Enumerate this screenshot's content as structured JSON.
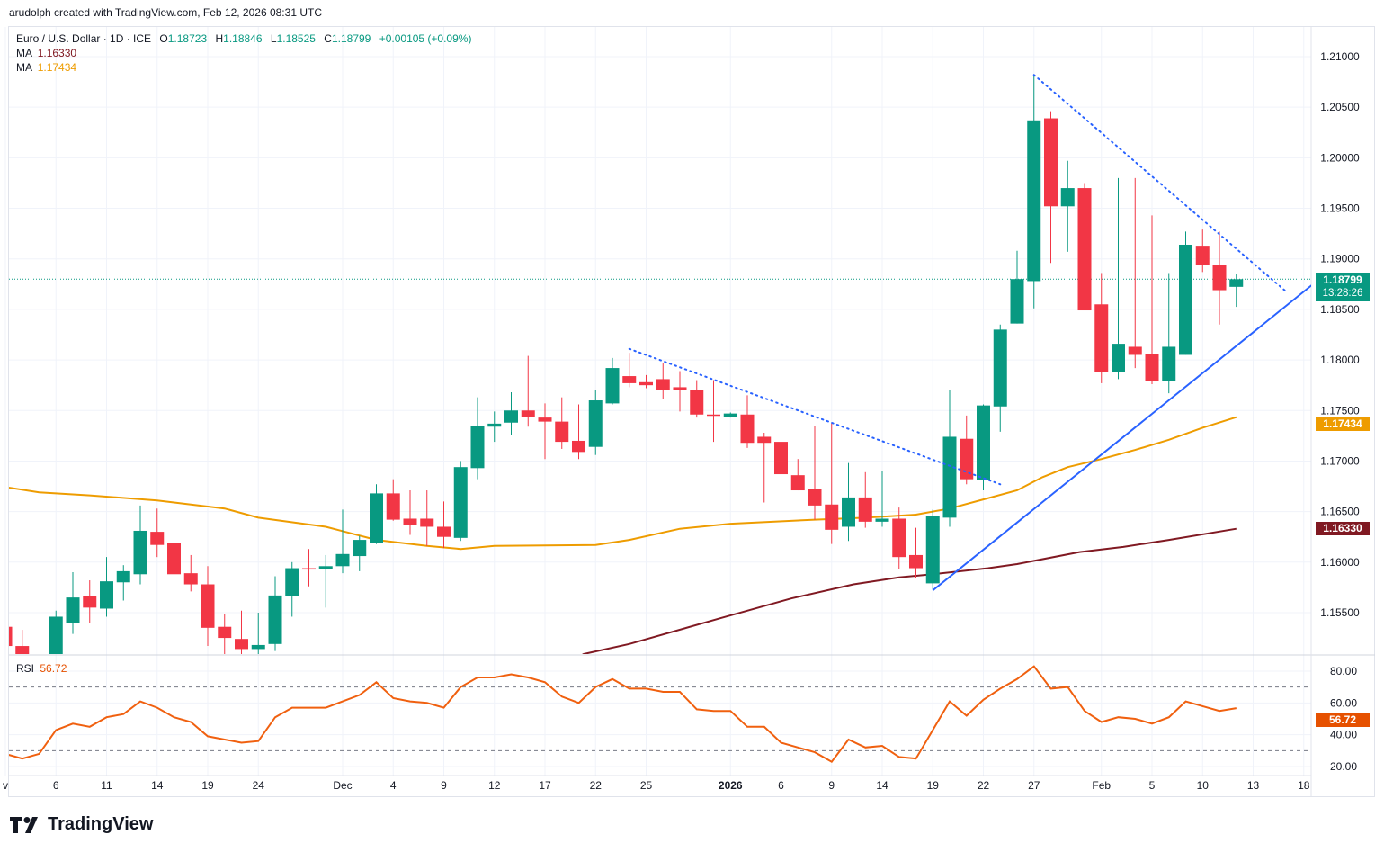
{
  "credit": "arudolph created with TradingView.com, Feb 12, 2026 08:31 UTC",
  "legend": {
    "symbol": "Euro / U.S. Dollar · 1D · ICE",
    "o_label": "O",
    "o": "1.18723",
    "h_label": "H",
    "h": "1.18846",
    "l_label": "L",
    "l": "1.18525",
    "c_label": "C",
    "c": "1.18799",
    "change": "+0.00105 (+0.09%)",
    "ma1_label": "MA",
    "ma1": "1.16330",
    "ma2_label": "MA",
    "ma2": "1.17434",
    "rsi_label": "RSI",
    "rsi": "56.72"
  },
  "tags": {
    "price": "1.18799",
    "countdown": "13:28:26",
    "ma2": "1.17434",
    "ma1": "1.16330",
    "rsi": "56.72"
  },
  "brand": "TradingView",
  "colors": {
    "up": "#089981",
    "down": "#f23645",
    "ma1": "#801922",
    "ma2": "#ee9c00",
    "trend": "#2962ff",
    "rsi": "#f0600f"
  },
  "chart_data": {
    "type": "candlestick",
    "title": "Euro / U.S. Dollar · 1D · ICE",
    "ylim": [
      1.1509,
      1.2125
    ],
    "price_ticks": [
      "1.21000",
      "1.20500",
      "1.20000",
      "1.19500",
      "1.19000",
      "1.18500",
      "1.18000",
      "1.17500",
      "1.17000",
      "1.16500",
      "1.16000",
      "1.15500"
    ],
    "x_ticks": [
      {
        "label": "v",
        "bar": 0
      },
      {
        "label": "6",
        "bar": 3
      },
      {
        "label": "11",
        "bar": 6
      },
      {
        "label": "14",
        "bar": 9
      },
      {
        "label": "19",
        "bar": 12
      },
      {
        "label": "24",
        "bar": 15
      },
      {
        "label": "Dec",
        "bar": 20
      },
      {
        "label": "4",
        "bar": 23
      },
      {
        "label": "9",
        "bar": 26
      },
      {
        "label": "12",
        "bar": 29
      },
      {
        "label": "17",
        "bar": 32
      },
      {
        "label": "22",
        "bar": 35
      },
      {
        "label": "25",
        "bar": 38
      },
      {
        "label": "2026",
        "bar": 43,
        "bold": true
      },
      {
        "label": "6",
        "bar": 46
      },
      {
        "label": "9",
        "bar": 49
      },
      {
        "label": "14",
        "bar": 52
      },
      {
        "label": "19",
        "bar": 55
      },
      {
        "label": "22",
        "bar": 58
      },
      {
        "label": "27",
        "bar": 61
      },
      {
        "label": "Feb",
        "bar": 65
      },
      {
        "label": "5",
        "bar": 68
      },
      {
        "label": "10",
        "bar": 71
      },
      {
        "label": "13",
        "bar": 74
      },
      {
        "label": "18",
        "bar": 77
      }
    ],
    "ohlc": [
      [
        1.1536,
        1.1538,
        1.1515,
        1.1517
      ],
      [
        1.1517,
        1.1533,
        1.15,
        1.1503
      ],
      [
        1.1503,
        1.1508,
        1.149,
        1.15
      ],
      [
        1.15,
        1.1552,
        1.1498,
        1.1546
      ],
      [
        1.154,
        1.159,
        1.1529,
        1.1565
      ],
      [
        1.1566,
        1.1582,
        1.154,
        1.1555
      ],
      [
        1.1554,
        1.1605,
        1.1546,
        1.1581
      ],
      [
        1.158,
        1.1597,
        1.1562,
        1.1591
      ],
      [
        1.1588,
        1.1656,
        1.1578,
        1.1631
      ],
      [
        1.163,
        1.1653,
        1.1605,
        1.1617
      ],
      [
        1.1619,
        1.1624,
        1.1581,
        1.1588
      ],
      [
        1.1589,
        1.1607,
        1.1571,
        1.1578
      ],
      [
        1.1578,
        1.1596,
        1.1517,
        1.1535
      ],
      [
        1.1536,
        1.1549,
        1.1509,
        1.1525
      ],
      [
        1.1524,
        1.1552,
        1.1505,
        1.1514
      ],
      [
        1.1514,
        1.155,
        1.1505,
        1.1518
      ],
      [
        1.1519,
        1.1586,
        1.1512,
        1.1567
      ],
      [
        1.1566,
        1.16,
        1.1546,
        1.1594
      ],
      [
        1.1594,
        1.1613,
        1.1576,
        1.1593
      ],
      [
        1.1593,
        1.1607,
        1.1555,
        1.1596
      ],
      [
        1.1596,
        1.1652,
        1.1589,
        1.1608
      ],
      [
        1.1606,
        1.1626,
        1.1591,
        1.1622
      ],
      [
        1.1619,
        1.1677,
        1.1618,
        1.1668
      ],
      [
        1.1668,
        1.1682,
        1.1641,
        1.1642
      ],
      [
        1.1643,
        1.1671,
        1.1627,
        1.1637
      ],
      [
        1.1643,
        1.1671,
        1.1616,
        1.1635
      ],
      [
        1.1635,
        1.166,
        1.1614,
        1.1625
      ],
      [
        1.1624,
        1.17,
        1.1621,
        1.1694
      ],
      [
        1.1693,
        1.1763,
        1.1682,
        1.1735
      ],
      [
        1.1734,
        1.1749,
        1.1719,
        1.1737
      ],
      [
        1.1738,
        1.1768,
        1.1726,
        1.175
      ],
      [
        1.175,
        1.1804,
        1.1734,
        1.1744
      ],
      [
        1.1743,
        1.1757,
        1.1702,
        1.1739
      ],
      [
        1.1739,
        1.1763,
        1.1712,
        1.1719
      ],
      [
        1.172,
        1.1756,
        1.1702,
        1.1709
      ],
      [
        1.1714,
        1.177,
        1.1706,
        1.176
      ],
      [
        1.1757,
        1.1802,
        1.1756,
        1.1792
      ],
      [
        1.1784,
        1.1807,
        1.1773,
        1.1777
      ],
      [
        1.1778,
        1.1785,
        1.1772,
        1.1775
      ],
      [
        1.1781,
        1.1797,
        1.1761,
        1.177
      ],
      [
        1.1773,
        1.1789,
        1.1749,
        1.177
      ],
      [
        1.177,
        1.178,
        1.1743,
        1.1746
      ],
      [
        1.1746,
        1.178,
        1.1719,
        1.1745
      ],
      [
        1.1744,
        1.1748,
        1.1743,
        1.1747
      ],
      [
        1.1746,
        1.1765,
        1.1713,
        1.1718
      ],
      [
        1.1724,
        1.1728,
        1.1659,
        1.1718
      ],
      [
        1.1719,
        1.1756,
        1.1684,
        1.1687
      ],
      [
        1.1686,
        1.1702,
        1.1671,
        1.1671
      ],
      [
        1.1672,
        1.1735,
        1.1642,
        1.1656
      ],
      [
        1.1657,
        1.1738,
        1.1618,
        1.1632
      ],
      [
        1.1635,
        1.1698,
        1.1621,
        1.1664
      ],
      [
        1.1664,
        1.1689,
        1.1634,
        1.164
      ],
      [
        1.164,
        1.169,
        1.1635,
        1.1643
      ],
      [
        1.1643,
        1.1654,
        1.1593,
        1.1605
      ],
      [
        1.1607,
        1.1634,
        1.1584,
        1.1594
      ],
      [
        1.1579,
        1.1652,
        1.1573,
        1.1646
      ],
      [
        1.1644,
        1.177,
        1.1635,
        1.1724
      ],
      [
        1.1722,
        1.1745,
        1.1677,
        1.1682
      ],
      [
        1.1681,
        1.1756,
        1.1671,
        1.1755
      ],
      [
        1.1754,
        1.1835,
        1.1729,
        1.183
      ],
      [
        1.1836,
        1.1908,
        1.1836,
        1.188
      ],
      [
        1.1878,
        1.2082,
        1.1851,
        1.2037
      ],
      [
        1.2039,
        1.2046,
        1.1896,
        1.1952
      ],
      [
        1.1952,
        1.1997,
        1.1907,
        1.197
      ],
      [
        1.197,
        1.1975,
        1.1849,
        1.1849
      ],
      [
        1.1855,
        1.1886,
        1.1777,
        1.1788
      ],
      [
        1.1788,
        1.198,
        1.1781,
        1.1816
      ],
      [
        1.1813,
        1.198,
        1.1792,
        1.1805
      ],
      [
        1.1806,
        1.1943,
        1.1776,
        1.1779
      ],
      [
        1.1779,
        1.1886,
        1.1767,
        1.1813
      ],
      [
        1.1805,
        1.1927,
        1.1805,
        1.1914
      ],
      [
        1.1913,
        1.1929,
        1.1887,
        1.1894
      ],
      [
        1.1894,
        1.1927,
        1.1835,
        1.1869
      ],
      [
        1.18723,
        1.18846,
        1.18525,
        1.18799
      ]
    ],
    "last_price": 1.18799,
    "ma_series": [
      {
        "name": "MA",
        "last": 1.1633,
        "color": "#801922",
        "points": [
          [
            30,
            1.147
          ],
          [
            34.3,
            1.1509
          ],
          [
            37,
            1.1519
          ],
          [
            42.3,
            1.1544
          ],
          [
            46.6,
            1.1564
          ],
          [
            50.3,
            1.1578
          ],
          [
            53,
            1.1585
          ],
          [
            55,
            1.1588
          ],
          [
            58.3,
            1.1594
          ],
          [
            60,
            1.1598
          ],
          [
            63.7,
            1.161
          ],
          [
            66.3,
            1.1615
          ],
          [
            69,
            1.1622
          ],
          [
            73,
            1.1633
          ]
        ]
      },
      {
        "name": "MA",
        "last": 1.17434,
        "color": "#ee9c00",
        "points": [
          [
            -0.3,
            1.1675
          ],
          [
            2,
            1.1669
          ],
          [
            5,
            1.1666
          ],
          [
            9,
            1.1661
          ],
          [
            13,
            1.1653
          ],
          [
            15,
            1.1644
          ],
          [
            19,
            1.1635
          ],
          [
            22,
            1.1622
          ],
          [
            25,
            1.1616
          ],
          [
            27,
            1.1613
          ],
          [
            29,
            1.1616
          ],
          [
            35,
            1.1617
          ],
          [
            37,
            1.1622
          ],
          [
            40,
            1.1633
          ],
          [
            43,
            1.1638
          ],
          [
            48,
            1.1642
          ],
          [
            51,
            1.1644
          ],
          [
            54,
            1.1647
          ],
          [
            56,
            1.1653
          ],
          [
            58,
            1.1662
          ],
          [
            60,
            1.1671
          ],
          [
            61.5,
            1.1684
          ],
          [
            63,
            1.1694
          ],
          [
            65,
            1.1702
          ],
          [
            67,
            1.1711
          ],
          [
            69,
            1.1721
          ],
          [
            71,
            1.1733
          ],
          [
            73,
            1.17434
          ]
        ]
      }
    ],
    "trendlines": [
      {
        "style": "dotted",
        "from": [
          37,
          1.1811
        ],
        "to": [
          59,
          1.1677
        ]
      },
      {
        "style": "dotted",
        "from": [
          61,
          1.2082
        ],
        "to": [
          76,
          1.1867
        ]
      },
      {
        "style": "solid",
        "from": [
          55,
          1.1572
        ],
        "to": [
          77.7,
          1.1877
        ]
      }
    ],
    "rsi": {
      "ylim": [
        14,
        88
      ],
      "ticks": [
        "80.00",
        "60.00",
        "40.00",
        "20.00"
      ],
      "bands": [
        70,
        30
      ],
      "values": [
        28,
        25,
        28,
        43,
        47,
        45,
        51,
        53,
        61,
        57,
        51,
        48,
        39,
        37,
        35,
        36,
        51,
        57,
        57,
        57,
        61,
        65,
        73,
        63,
        61,
        60,
        57,
        70,
        76,
        76,
        78,
        76,
        73,
        64,
        60,
        70,
        75,
        69,
        69,
        67,
        67,
        56,
        55,
        55,
        45,
        45,
        35,
        32,
        29,
        23,
        37,
        32,
        33,
        26,
        25,
        43,
        61,
        52,
        62,
        69,
        75,
        83,
        69,
        70,
        55,
        48,
        51,
        50,
        47,
        51,
        61,
        58,
        55,
        56.72
      ]
    }
  }
}
